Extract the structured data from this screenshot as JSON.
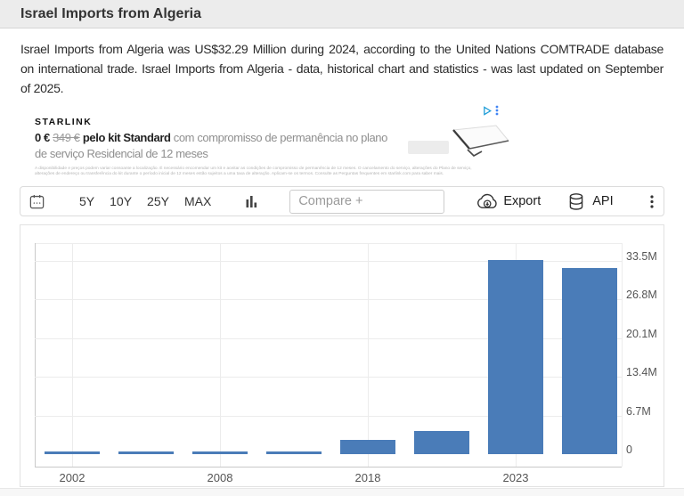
{
  "header": {
    "title": "Israel Imports from Algeria"
  },
  "summary": {
    "text": "Israel Imports from Algeria was US$32.29 Million during 2024, according to the United Nations COMTRADE database on international trade. Israel Imports from Algeria - data, historical chart and statistics - was last updated on September of 2025.",
    "lines": [
      "Israel Imports from Algeria was US$32.29 Million during 2024, according to the United Nations COMTRADE database",
      "on international trade. Israel Imports from Algeria - data, historical chart and statistics - was last updated on September",
      "of 2025."
    ]
  },
  "ad": {
    "brand": "STARLINK",
    "price_new": "0 €",
    "price_old": "349 €",
    "highlight": "pelo kit Standard",
    "headline_rest": " com compromisso de permanência no plano",
    "headline_line2": "de serviço Residencial de 12 meses",
    "fine_print": "A disponibilidade e preços podem variar consoante a localização. É necessário encomendar um kit e aceitar as condições de compromisso de permanência de 12 meses. O cancelamento do serviço, alterações do Plano de serviço, alterações de endereço ou transferência do kit durante o período inicial de 12 meses estão sujeitos a uma taxa de alteração. Aplicam-se os termos. Consulte as Perguntas frequentes em starlink.com para saber mais."
  },
  "toolbar": {
    "range_buttons": [
      "5Y",
      "10Y",
      "25Y",
      "MAX"
    ],
    "compare_placeholder": "Compare +",
    "export_label": "Export",
    "api_label": "API"
  },
  "chart_data": {
    "type": "bar",
    "title": "Israel Imports from Algeria",
    "unit": "USD (M = millions)",
    "values": [
      0.4,
      0.4,
      0.4,
      0.4,
      2.5,
      4.0,
      33.6,
      32.29
    ],
    "x_tick_labels": [
      "2002",
      "2008",
      "2018",
      "2023"
    ],
    "x_tick_bar_index": [
      0,
      2,
      4,
      6
    ],
    "y_tick_labels": [
      "33.5M",
      "26.8M",
      "20.1M",
      "13.4M",
      "6.7M",
      "0"
    ],
    "y_tick_values": [
      33.5,
      26.8,
      20.1,
      13.4,
      6.7,
      0
    ],
    "ylim": [
      -2.2,
      36.6
    ],
    "bar_color": "#4a7cb8",
    "grid": true,
    "legend": false
  }
}
